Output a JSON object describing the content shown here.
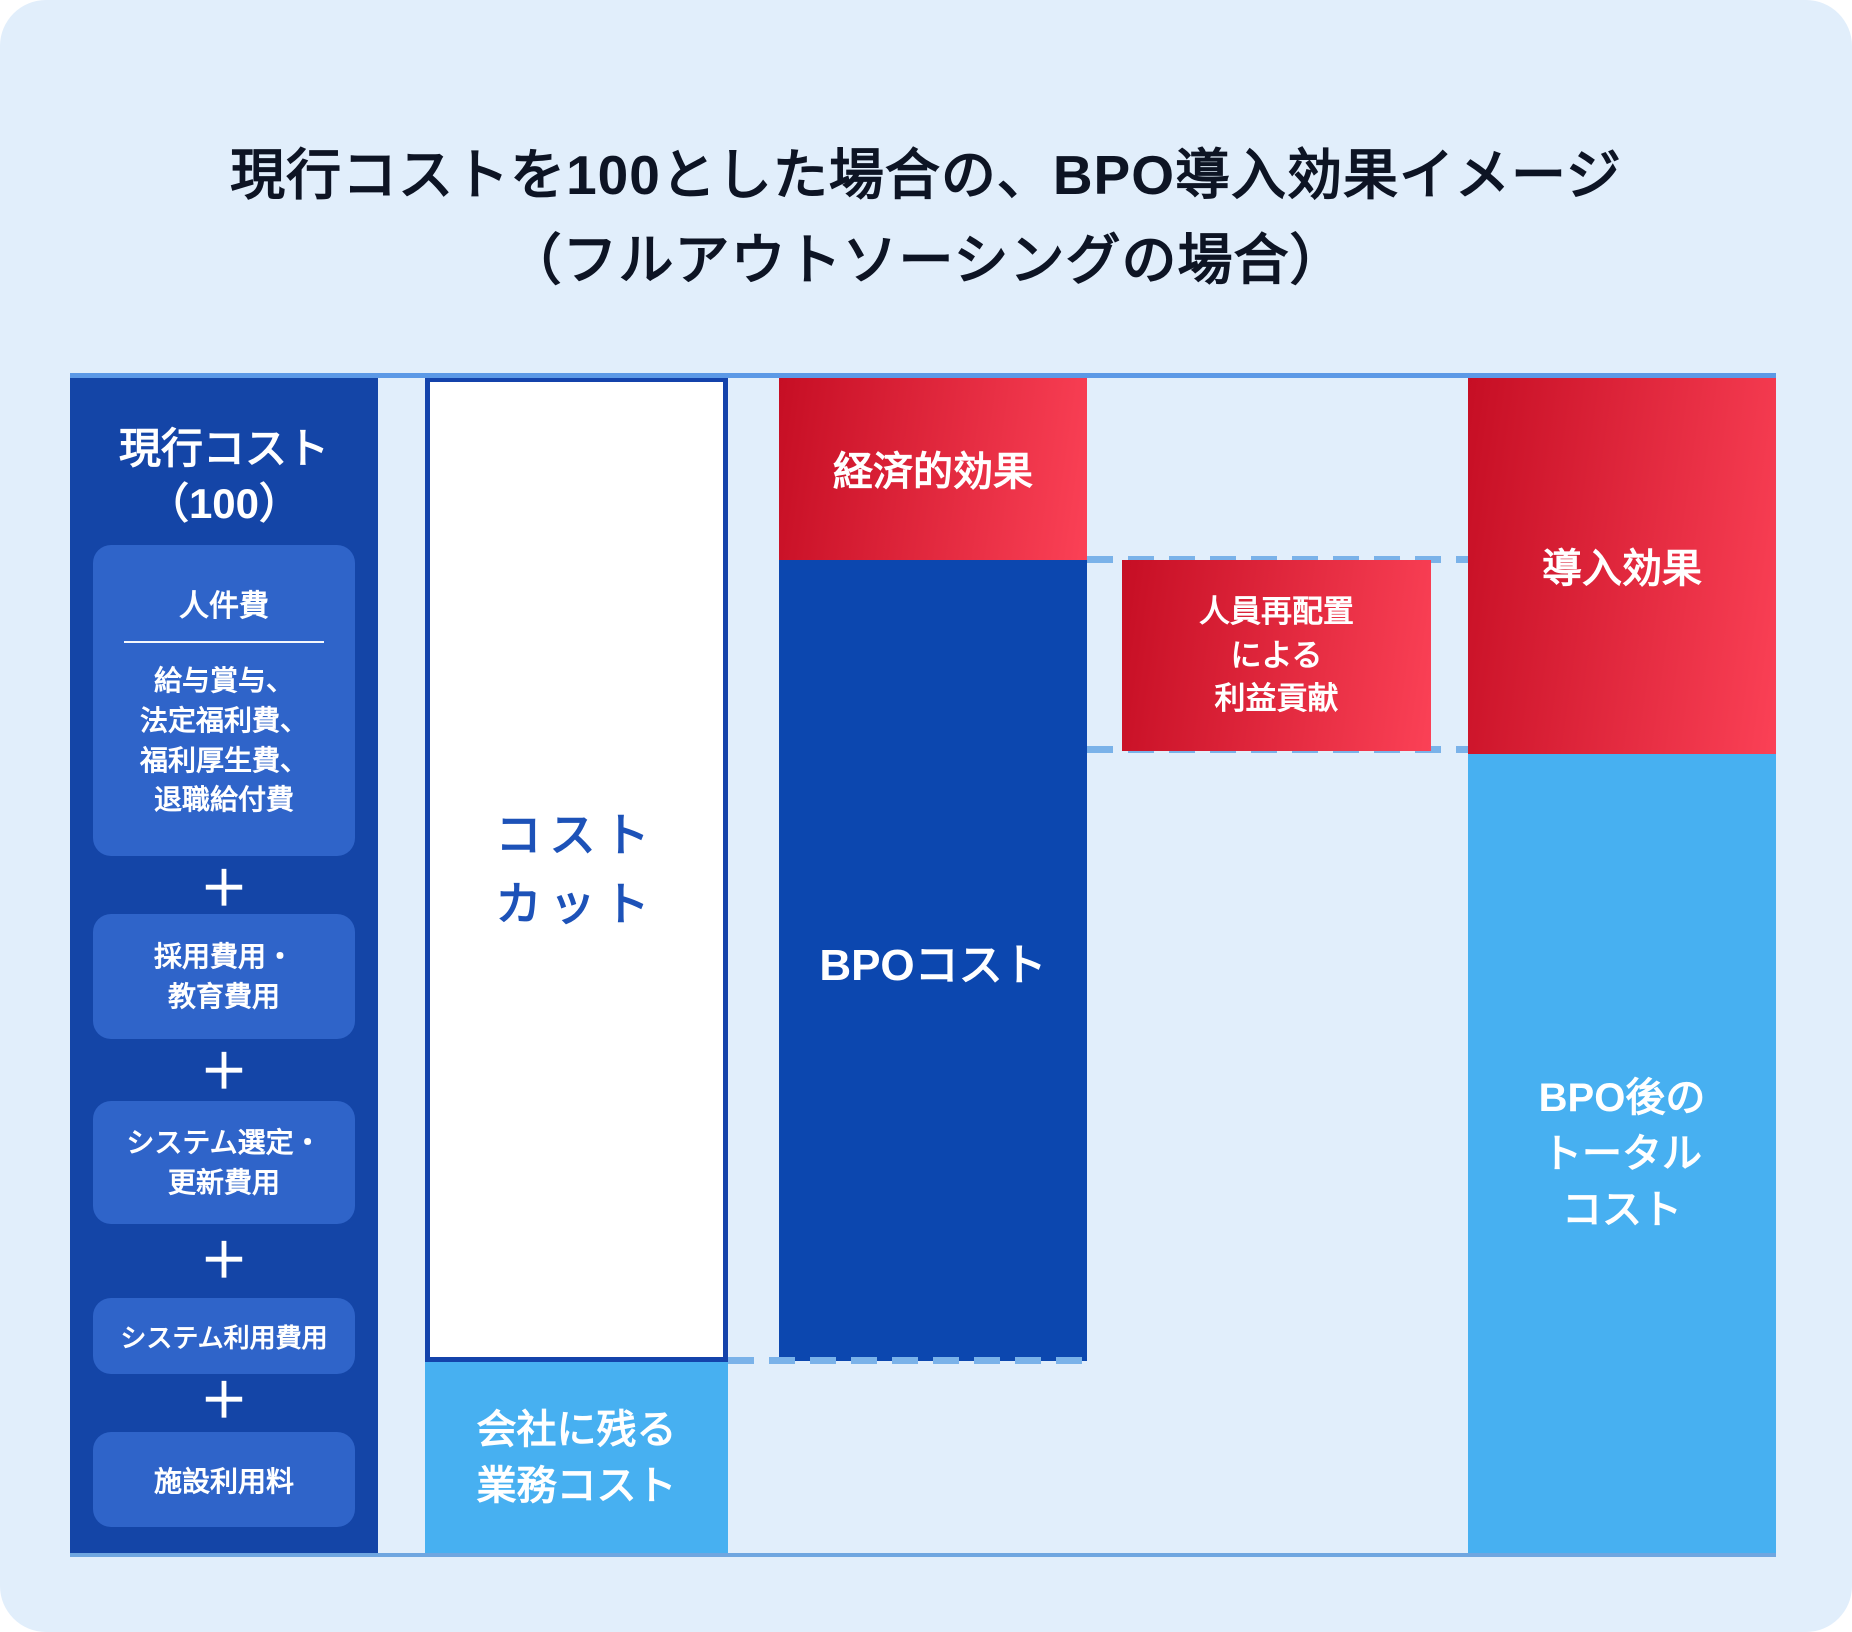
{
  "title": {
    "line1": "現行コストを100とした場合の、BPO導入効果イメージ",
    "line2": "（フルアウトソーシングの場合）"
  },
  "current_cost_column": {
    "header": "現行コスト\n（100）",
    "plus_sign": "＋",
    "personnel_box": {
      "title": "人件費",
      "detail": "給与賞与、\n法定福利費、\n福利厚生費、\n退職給付費"
    },
    "items": [
      "採用費用・\n教育費用",
      "システム選定・\n更新費用",
      "システム利用費用",
      "施設利用料"
    ]
  },
  "cost_cut_column": {
    "cost_cut_label": "コスト\nカット",
    "remaining_label": "会社に残る\n業務コスト"
  },
  "bpo_column": {
    "economic_effect_label": "経済的効果",
    "bpo_cost_label": "BPOコスト"
  },
  "reallocation_box": {
    "label": "人員再配置\nによる\n利益貢献"
  },
  "result_column": {
    "effect_label": "導入効果",
    "total_label": "BPO後の\nトータル\nコスト"
  },
  "colors": {
    "background": "#e1eefb",
    "dark_blue": "#1445a7",
    "bpo_blue": "#0c47af",
    "inner_box_blue": "#2f64c9",
    "light_blue": "#47b0f1",
    "red_gradient_start": "#c60e24",
    "red_gradient_end": "#fb4156",
    "border_line_blue": "#5c99e6",
    "dashed_line_blue": "#7ab2e9",
    "cost_cut_text": "#1d52b8",
    "title_text": "#0d1424"
  }
}
